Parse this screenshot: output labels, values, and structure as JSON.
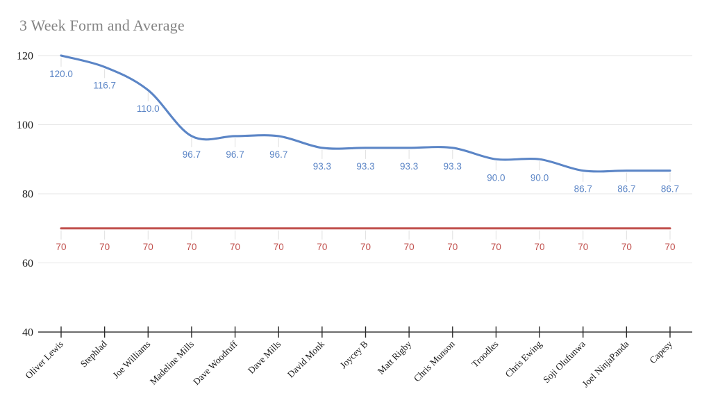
{
  "chart_data": {
    "type": "line",
    "title": "3 Week Form and Average",
    "categories": [
      "Oliver Lewis",
      "Stephlad",
      "Joe Williams",
      "Madeline Mills",
      "Dave Woodruff",
      "Dave Mills",
      "David Monk",
      "Joycey B",
      "Matt Rigby",
      "Chris Munson",
      "Troodles",
      "Chris Ewing",
      "Soji Olufunwa",
      "Joel NinjaPanda",
      "Capesy"
    ],
    "series": [
      {
        "id": "form-line",
        "style": "smooth",
        "color": "#5b85c6",
        "values": [
          120.0,
          116.7,
          110.0,
          96.7,
          96.7,
          96.7,
          93.3,
          93.3,
          93.3,
          93.3,
          90.0,
          90.0,
          86.7,
          86.7,
          86.7
        ],
        "labels": [
          "120.0",
          "116.7",
          "110.0",
          "96.7",
          "96.7",
          "96.7",
          "93.3",
          "93.3",
          "93.3",
          "93.3",
          "90.0",
          "90.0",
          "86.7",
          "86.7",
          "86.7"
        ]
      },
      {
        "id": "average-line",
        "style": "straight",
        "color": "#c1504d",
        "values": [
          70,
          70,
          70,
          70,
          70,
          70,
          70,
          70,
          70,
          70,
          70,
          70,
          70,
          70,
          70
        ],
        "labels": [
          "70",
          "70",
          "70",
          "70",
          "70",
          "70",
          "70",
          "70",
          "70",
          "70",
          "70",
          "70",
          "70",
          "70",
          "70"
        ]
      }
    ],
    "y_axis": {
      "min": 40,
      "max": 120,
      "ticks": [
        120,
        100,
        80,
        60,
        40
      ]
    },
    "x_axis": {
      "label_rotation_deg": 45,
      "tick_marks": true
    },
    "legend": "none",
    "grid": true,
    "colors": {
      "background": "#ffffff",
      "gridline": "#e6e6e6",
      "axis_line": "#3c3c3c",
      "tick_mark": "#2a2a2a",
      "axis_tick_label": "#1a1a1a",
      "category_label": "#161616",
      "title": "#848484",
      "leader_stub": "#e2e2e2"
    }
  }
}
